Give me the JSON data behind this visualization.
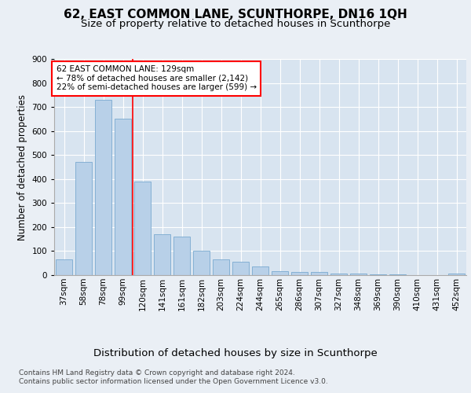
{
  "title": "62, EAST COMMON LANE, SCUNTHORPE, DN16 1QH",
  "subtitle": "Size of property relative to detached houses in Scunthorpe",
  "xlabel": "Distribution of detached houses by size in Scunthorpe",
  "ylabel": "Number of detached properties",
  "categories": [
    "37sqm",
    "58sqm",
    "78sqm",
    "99sqm",
    "120sqm",
    "141sqm",
    "161sqm",
    "182sqm",
    "203sqm",
    "224sqm",
    "244sqm",
    "265sqm",
    "286sqm",
    "307sqm",
    "327sqm",
    "348sqm",
    "369sqm",
    "390sqm",
    "410sqm",
    "431sqm",
    "452sqm"
  ],
  "values": [
    65,
    470,
    730,
    650,
    390,
    170,
    160,
    100,
    65,
    55,
    35,
    15,
    12,
    12,
    8,
    6,
    4,
    3,
    0,
    0,
    5
  ],
  "bar_color": "#b8d0e8",
  "bar_edge_color": "#7aaad0",
  "vline_x": 3.5,
  "vline_color": "red",
  "annotation_text": "62 EAST COMMON LANE: 129sqm\n← 78% of detached houses are smaller (2,142)\n22% of semi-detached houses are larger (599) →",
  "annotation_box_color": "white",
  "annotation_box_edge": "red",
  "background_color": "#eaeff5",
  "plot_bg_color": "#d8e4f0",
  "ylim": [
    0,
    900
  ],
  "yticks": [
    0,
    100,
    200,
    300,
    400,
    500,
    600,
    700,
    800,
    900
  ],
  "footer_line1": "Contains HM Land Registry data © Crown copyright and database right 2024.",
  "footer_line2": "Contains public sector information licensed under the Open Government Licence v3.0.",
  "title_fontsize": 11,
  "subtitle_fontsize": 9.5,
  "xlabel_fontsize": 9.5,
  "ylabel_fontsize": 8.5,
  "tick_fontsize": 7.5,
  "footer_fontsize": 6.5,
  "annot_fontsize": 7.5
}
